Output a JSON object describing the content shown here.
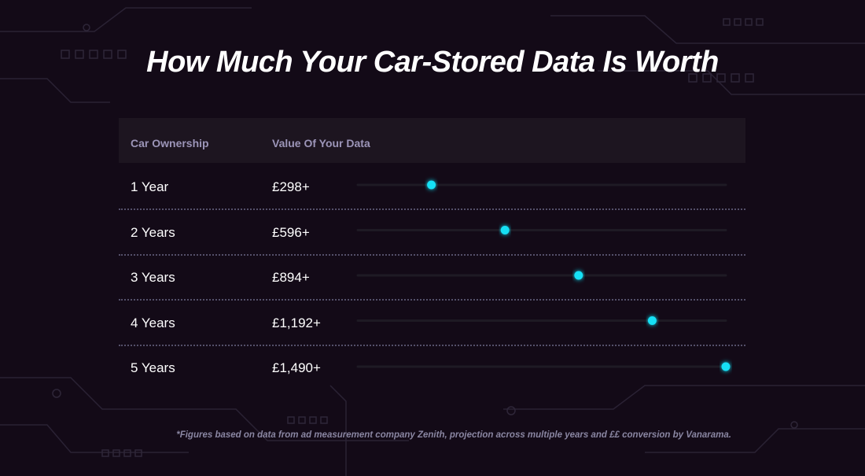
{
  "title": "How Much Your Car-Stored Data Is Worth",
  "chart_data": {
    "type": "bar",
    "orientation": "horizontal",
    "title": "How Much Your Car-Stored Data Is Worth",
    "columns": [
      "Car Ownership",
      "Value Of Your Data"
    ],
    "categories": [
      "1 Year",
      "2 Years",
      "3 Years",
      "4 Years",
      "5 Years"
    ],
    "values": [
      298,
      596,
      894,
      1192,
      1490
    ],
    "value_labels": [
      "£298+",
      "£596+",
      "£894+",
      "£1,192+",
      "£1,490+"
    ],
    "xlim": [
      0,
      1490
    ],
    "unit": "GBP"
  },
  "footnote": "*Figures based on data from ad measurement company Zenith, projection across multiple years and ££ conversion by Vanarama.",
  "colors": {
    "background": "#130a17",
    "bar": "#12e0f5",
    "track": "#1e1a24",
    "header_bg": "#1d1520",
    "header_text": "#9c95b8"
  }
}
